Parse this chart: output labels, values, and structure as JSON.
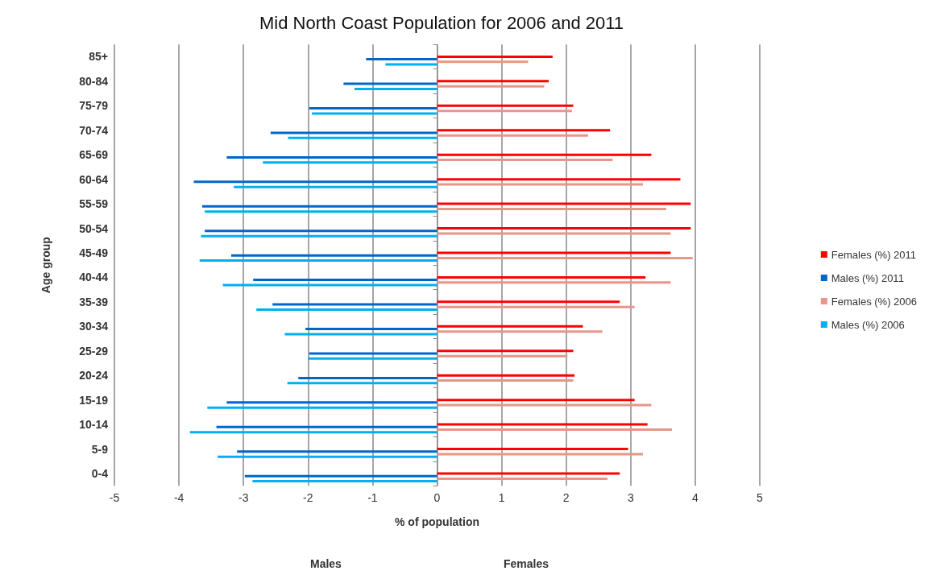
{
  "chart_data": {
    "type": "bar",
    "orientation": "horizontal",
    "title": "Mid North Coast Population for 2006 and 2011",
    "xlabel": "% of population",
    "ylabel": "Age group",
    "annotations": [
      "Males",
      "Females"
    ],
    "categories": [
      "85+",
      "80-84",
      "75-79",
      "70-74",
      "65-69",
      "60-64",
      "55-59",
      "50-54",
      "45-49",
      "40-44",
      "35-39",
      "30-34",
      "25-29",
      "20-24",
      "15-19",
      "10-14",
      "5-9",
      "0-4"
    ],
    "series": [
      {
        "name": "Females (%) 2011",
        "color": "#ff0000",
        "values": [
          1.79,
          1.73,
          2.11,
          2.68,
          3.32,
          3.77,
          3.93,
          3.93,
          3.62,
          3.23,
          2.83,
          2.26,
          2.11,
          2.13,
          3.06,
          3.26,
          2.96,
          2.83
        ]
      },
      {
        "name": "Males (%) 2011",
        "color": "#0066cc",
        "values": [
          -1.1,
          -1.45,
          -1.98,
          -2.58,
          -3.26,
          -3.77,
          -3.64,
          -3.6,
          -3.19,
          -2.85,
          -2.55,
          -2.04,
          -1.98,
          -2.15,
          -3.26,
          -3.42,
          -3.1,
          -2.98
        ]
      },
      {
        "name": "Females (%) 2006",
        "color": "#e8958a",
        "values": [
          1.41,
          1.66,
          2.09,
          2.34,
          2.72,
          3.19,
          3.55,
          3.62,
          3.96,
          3.62,
          3.06,
          2.56,
          2.02,
          2.11,
          3.32,
          3.64,
          3.19,
          2.64
        ]
      },
      {
        "name": "Males (%) 2006",
        "color": "#00b0f0",
        "values": [
          -0.8,
          -1.28,
          -1.94,
          -2.31,
          -2.7,
          -3.15,
          -3.6,
          -3.66,
          -3.68,
          -3.32,
          -2.8,
          -2.36,
          -2.0,
          -2.32,
          -3.56,
          -3.83,
          -3.4,
          -2.86
        ]
      }
    ],
    "xlim": [
      -5,
      5
    ],
    "xticks": [
      -5,
      -4,
      -3,
      -2,
      -1,
      0,
      1,
      2,
      3,
      4,
      5
    ],
    "grid": "x",
    "legend": "right"
  }
}
